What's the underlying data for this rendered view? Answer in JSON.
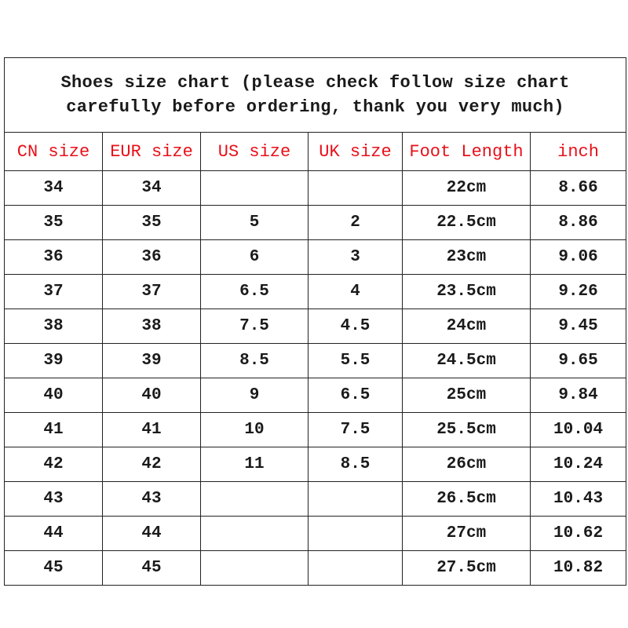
{
  "title": "Shoes size chart (please check follow size chart carefully before ordering, thank you very much)",
  "title_lines": [
    "Shoes size chart (please check follow size chart",
    "carefully before ordering, thank you very much)"
  ],
  "header_color": "#e8101a",
  "columns": [
    "CN size",
    "EUR size",
    "US size",
    "UK size",
    "Foot Length",
    "inch"
  ],
  "rows": [
    [
      "34",
      "34",
      "",
      "",
      "22cm",
      "8.66"
    ],
    [
      "35",
      "35",
      "5",
      "2",
      "22.5cm",
      "8.86"
    ],
    [
      "36",
      "36",
      "6",
      "3",
      "23cm",
      "9.06"
    ],
    [
      "37",
      "37",
      "6.5",
      "4",
      "23.5cm",
      "9.26"
    ],
    [
      "38",
      "38",
      "7.5",
      "4.5",
      "24cm",
      "9.45"
    ],
    [
      "39",
      "39",
      "8.5",
      "5.5",
      "24.5cm",
      "9.65"
    ],
    [
      "40",
      "40",
      "9",
      "6.5",
      "25cm",
      "9.84"
    ],
    [
      "41",
      "41",
      "10",
      "7.5",
      "25.5cm",
      "10.04"
    ],
    [
      "42",
      "42",
      "11",
      "8.5",
      "26cm",
      "10.24"
    ],
    [
      "43",
      "43",
      "",
      "",
      "26.5cm",
      "10.43"
    ],
    [
      "44",
      "44",
      "",
      "",
      "27cm",
      "10.62"
    ],
    [
      "45",
      "45",
      "",
      "",
      "27.5cm",
      "10.82"
    ]
  ]
}
